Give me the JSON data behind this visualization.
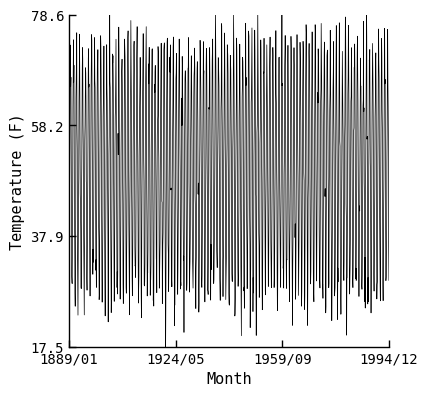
{
  "title": "",
  "xlabel": "Month",
  "ylabel": "Temperature (F)",
  "x_start_year": 1889,
  "x_start_month": 1,
  "x_end_year": 1994,
  "x_end_month": 12,
  "ylim": [
    17.5,
    78.6
  ],
  "yticks": [
    17.5,
    37.9,
    58.2,
    78.6
  ],
  "xtick_labels": [
    "1889/01",
    "1924/05",
    "1959/09",
    "1994/12"
  ],
  "xtick_years": [
    1889,
    1924,
    1959,
    1994
  ],
  "xtick_months": [
    1,
    5,
    9,
    12
  ],
  "line_color": "#000000",
  "line_width": 0.5,
  "background_color": "#ffffff",
  "font_family": "monospace",
  "font_size": 10,
  "xlabel_fontsize": 11,
  "ylabel_fontsize": 11
}
